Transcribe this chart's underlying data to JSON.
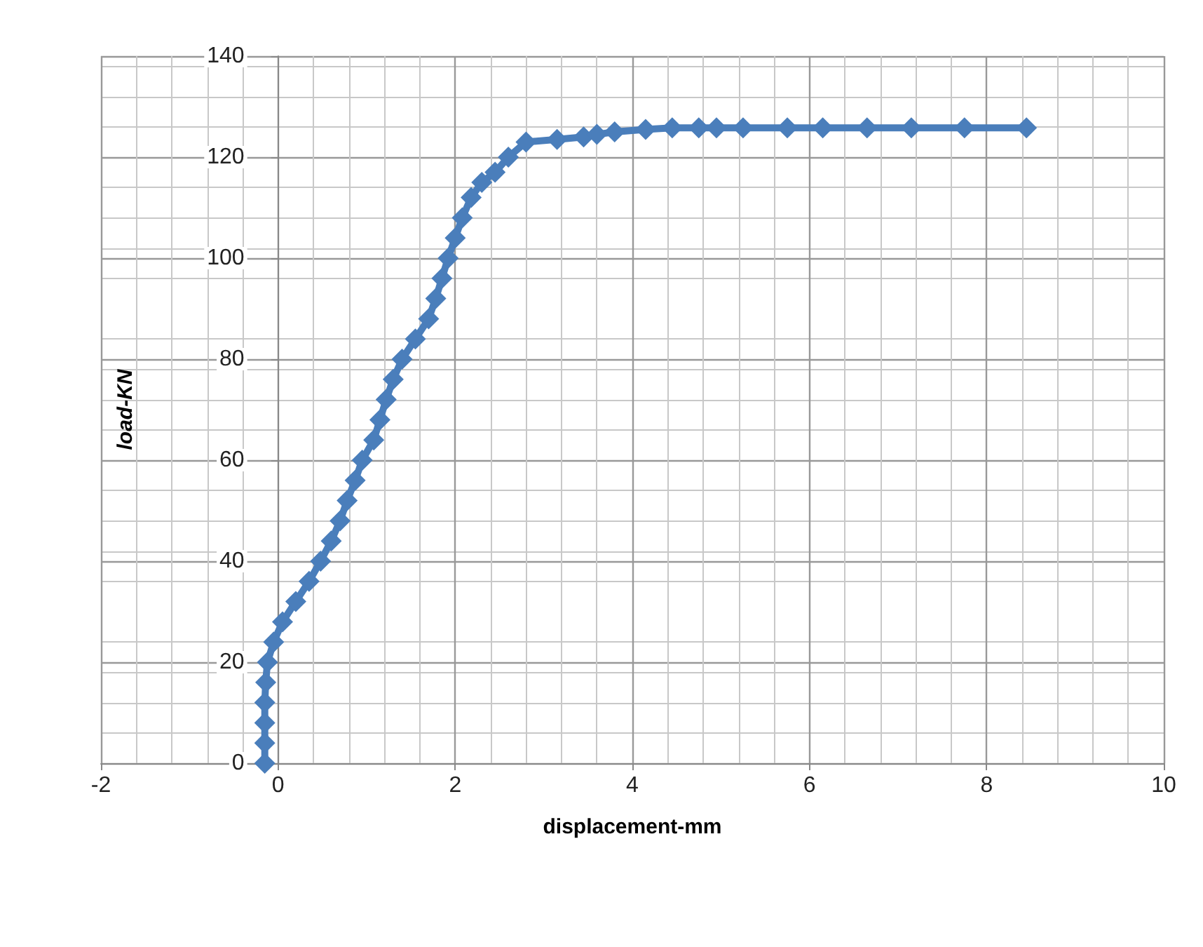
{
  "chart_data": {
    "type": "line",
    "xlabel": "displacement-mm",
    "ylabel": "load-KN",
    "xlim": [
      -2,
      10
    ],
    "xticks": [
      -2,
      0,
      2,
      4,
      6,
      8,
      10
    ],
    "ylim": [
      0,
      140
    ],
    "yticks": [
      0,
      20,
      40,
      60,
      80,
      100,
      120,
      140
    ],
    "grid": true,
    "marker": "diamond",
    "line_style": "solid",
    "series": [
      {
        "color": "#4a7ebb",
        "x": [
          -0.15,
          -0.15,
          -0.15,
          -0.15,
          -0.14,
          -0.12,
          -0.05,
          0.05,
          0.2,
          0.35,
          0.48,
          0.6,
          0.7,
          0.78,
          0.87,
          0.95,
          1.08,
          1.15,
          1.22,
          1.3,
          1.4,
          1.55,
          1.7,
          1.78,
          1.85,
          1.92,
          2.0,
          2.08,
          2.18,
          2.3,
          2.45,
          2.6,
          2.8,
          3.15,
          3.45,
          3.6,
          3.8,
          4.15,
          4.45,
          4.75,
          4.95,
          5.25,
          5.75,
          6.15,
          6.65,
          7.15,
          7.75,
          8.45
        ],
        "values": [
          0,
          4,
          8,
          12,
          16,
          20,
          24,
          28,
          32,
          36,
          40,
          44,
          48,
          52,
          56,
          60,
          64,
          68,
          72,
          76,
          80,
          84,
          88,
          92,
          96,
          100,
          104,
          108,
          112,
          115,
          117,
          120,
          123,
          123.5,
          124,
          124.5,
          125,
          125.5,
          125.8,
          125.8,
          125.8,
          125.8,
          125.8,
          125.8,
          125.8,
          125.8,
          125.8,
          125.8
        ]
      }
    ]
  }
}
